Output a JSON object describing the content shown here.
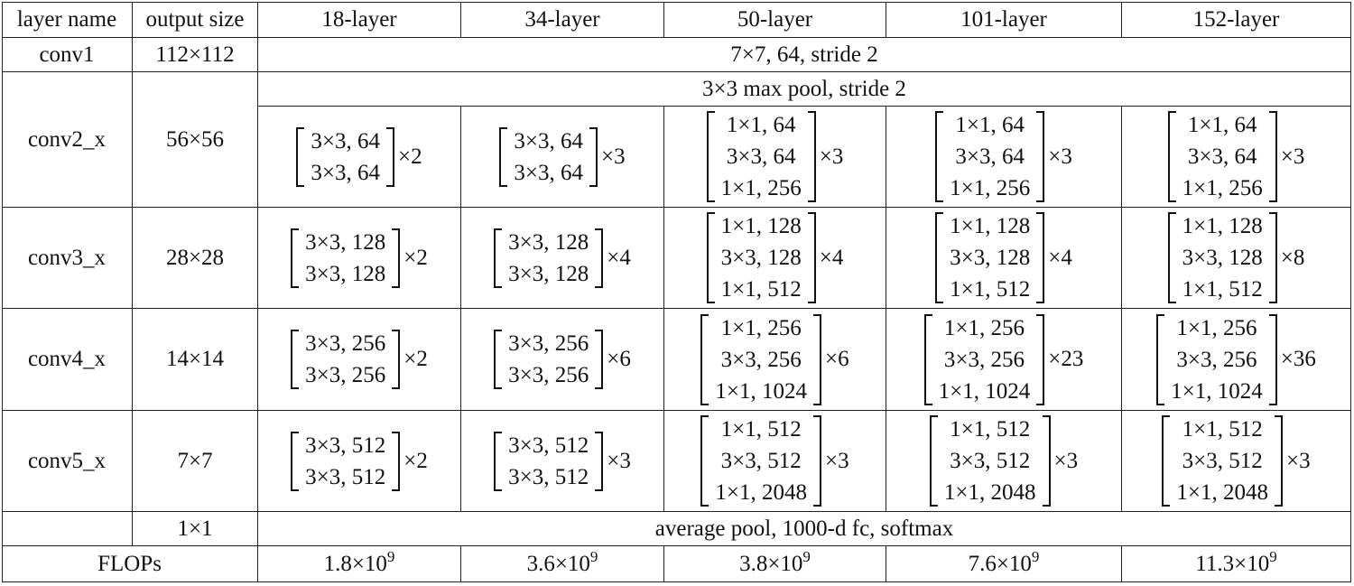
{
  "table": {
    "header": [
      "layer name",
      "output size",
      "18-layer",
      "34-layer",
      "50-layer",
      "101-layer",
      "152-layer"
    ],
    "conv1": {
      "name": "conv1",
      "size": "112×112",
      "spec": "7×7, 64, stride 2"
    },
    "stages": [
      {
        "name": "conv2_x",
        "size": "56×56",
        "pool": "3×3 max pool, stride 2",
        "blocks": [
          {
            "lines": [
              "3×3, 64",
              "3×3, 64"
            ],
            "repeat": "×2"
          },
          {
            "lines": [
              "3×3, 64",
              "3×3, 64"
            ],
            "repeat": "×3"
          },
          {
            "lines": [
              "1×1, 64",
              "3×3, 64",
              "1×1, 256"
            ],
            "repeat": "×3"
          },
          {
            "lines": [
              "1×1, 64",
              "3×3, 64",
              "1×1, 256"
            ],
            "repeat": "×3"
          },
          {
            "lines": [
              "1×1, 64",
              "3×3, 64",
              "1×1, 256"
            ],
            "repeat": "×3"
          }
        ]
      },
      {
        "name": "conv3_x",
        "size": "28×28",
        "blocks": [
          {
            "lines": [
              "3×3, 128",
              "3×3, 128"
            ],
            "repeat": "×2"
          },
          {
            "lines": [
              "3×3, 128",
              "3×3, 128"
            ],
            "repeat": "×4"
          },
          {
            "lines": [
              "1×1, 128",
              "3×3, 128",
              "1×1, 512"
            ],
            "repeat": "×4"
          },
          {
            "lines": [
              "1×1, 128",
              "3×3, 128",
              "1×1, 512"
            ],
            "repeat": "×4"
          },
          {
            "lines": [
              "1×1, 128",
              "3×3, 128",
              "1×1, 512"
            ],
            "repeat": "×8"
          }
        ]
      },
      {
        "name": "conv4_x",
        "size": "14×14",
        "blocks": [
          {
            "lines": [
              "3×3, 256",
              "3×3, 256"
            ],
            "repeat": "×2"
          },
          {
            "lines": [
              "3×3, 256",
              "3×3, 256"
            ],
            "repeat": "×6"
          },
          {
            "lines": [
              "1×1, 256",
              "3×3, 256",
              "1×1, 1024"
            ],
            "repeat": "×6"
          },
          {
            "lines": [
              "1×1, 256",
              "3×3, 256",
              "1×1, 1024"
            ],
            "repeat": "×23"
          },
          {
            "lines": [
              "1×1, 256",
              "3×3, 256",
              "1×1, 1024"
            ],
            "repeat": "×36"
          }
        ]
      },
      {
        "name": "conv5_x",
        "size": "7×7",
        "blocks": [
          {
            "lines": [
              "3×3, 512",
              "3×3, 512"
            ],
            "repeat": "×2"
          },
          {
            "lines": [
              "3×3, 512",
              "3×3, 512"
            ],
            "repeat": "×3"
          },
          {
            "lines": [
              "1×1, 512",
              "3×3, 512",
              "1×1, 2048"
            ],
            "repeat": "×3"
          },
          {
            "lines": [
              "1×1, 512",
              "3×3, 512",
              "1×1, 2048"
            ],
            "repeat": "×3"
          },
          {
            "lines": [
              "1×1, 512",
              "3×3, 512",
              "1×1, 2048"
            ],
            "repeat": "×3"
          }
        ]
      }
    ],
    "final": {
      "size": "1×1",
      "spec": "average pool, 1000-d fc, softmax"
    },
    "flops": {
      "label": "FLOPs",
      "values": [
        {
          "base": "1.8×10",
          "exponent": "9"
        },
        {
          "base": "3.6×10",
          "exponent": "9"
        },
        {
          "base": "3.8×10",
          "exponent": "9"
        },
        {
          "base": "7.6×10",
          "exponent": "9"
        },
        {
          "base": "11.3×10",
          "exponent": "9"
        }
      ]
    }
  }
}
